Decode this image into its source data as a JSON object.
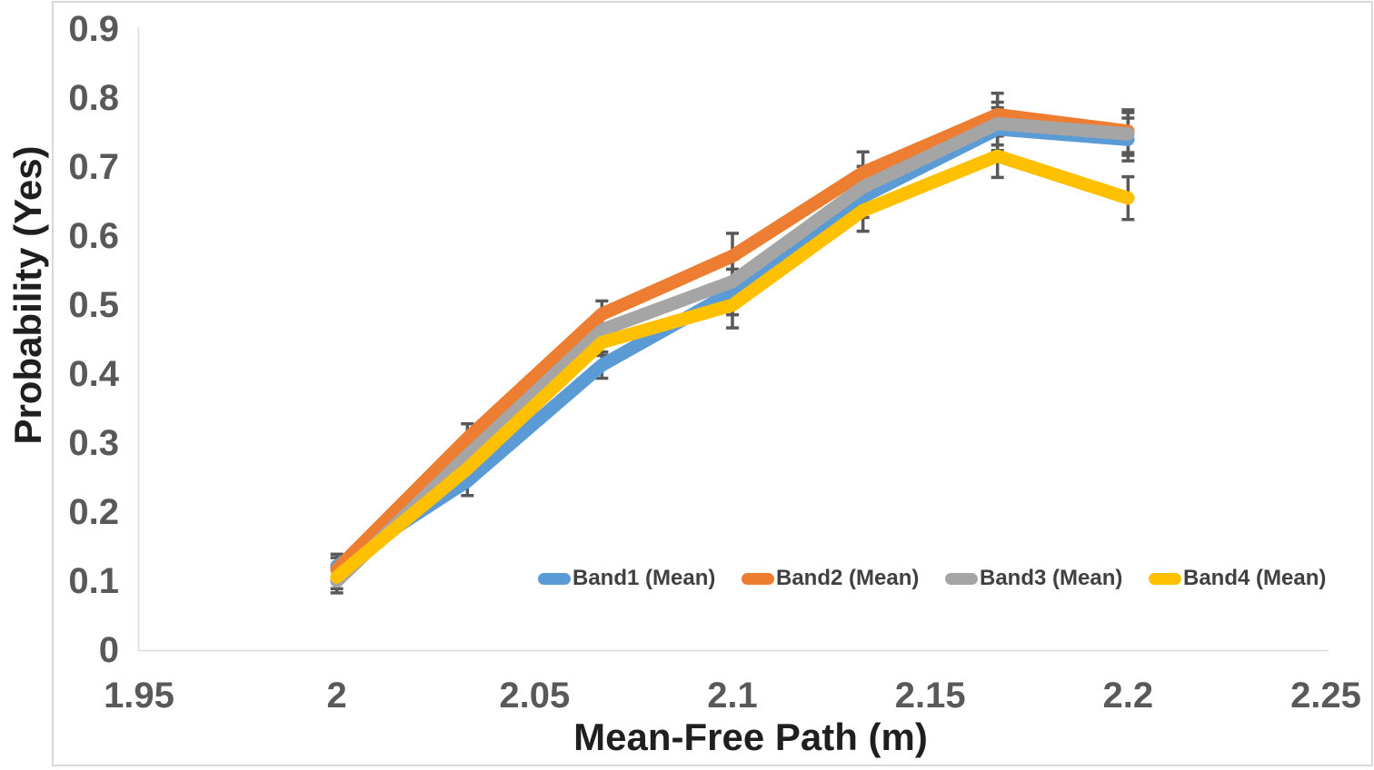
{
  "chart_data": {
    "type": "line",
    "title": "",
    "xlabel": "Mean-Free Path (m)",
    "ylabel": "Probability (Yes)",
    "xlim": [
      1.95,
      2.25
    ],
    "ylim": [
      0,
      0.9
    ],
    "xticks": [
      "1.95",
      "2",
      "2.05",
      "2.1",
      "2.15",
      "2.2",
      "2.25"
    ],
    "yticks": [
      "0",
      "0.1",
      "0.2",
      "0.3",
      "0.4",
      "0.5",
      "0.6",
      "0.7",
      "0.8",
      "0.9"
    ],
    "grid": false,
    "legend_position": "inside-bottom-right",
    "x": [
      2.0,
      2.033,
      2.067,
      2.1,
      2.133,
      2.167,
      2.2
    ],
    "series": [
      {
        "name": "Band1 (Mean)",
        "color": "#5B9BD5",
        "values": [
          0.122,
          0.245,
          0.413,
          0.519,
          0.657,
          0.755,
          0.74
        ]
      },
      {
        "name": "Band2 (Mean)",
        "color": "#ED7D31",
        "values": [
          0.117,
          0.307,
          0.487,
          0.571,
          0.692,
          0.776,
          0.752
        ]
      },
      {
        "name": "Band3 (Mean)",
        "color": "#A5A5A5",
        "values": [
          0.1,
          0.282,
          0.464,
          0.534,
          0.671,
          0.763,
          0.748
        ]
      },
      {
        "name": "Band4 (Mean)",
        "color": "#FFC000",
        "values": [
          0.106,
          0.263,
          0.446,
          0.5,
          0.637,
          0.716,
          0.655
        ]
      }
    ],
    "error_bars": {
      "per_point": [
        0.017,
        0.021,
        0.019,
        0.033,
        0.03,
        0.031,
        0.031
      ],
      "color": "#595959"
    },
    "axis_line_color": "#D9D9D9",
    "frame_color": "#D9D9D9"
  }
}
